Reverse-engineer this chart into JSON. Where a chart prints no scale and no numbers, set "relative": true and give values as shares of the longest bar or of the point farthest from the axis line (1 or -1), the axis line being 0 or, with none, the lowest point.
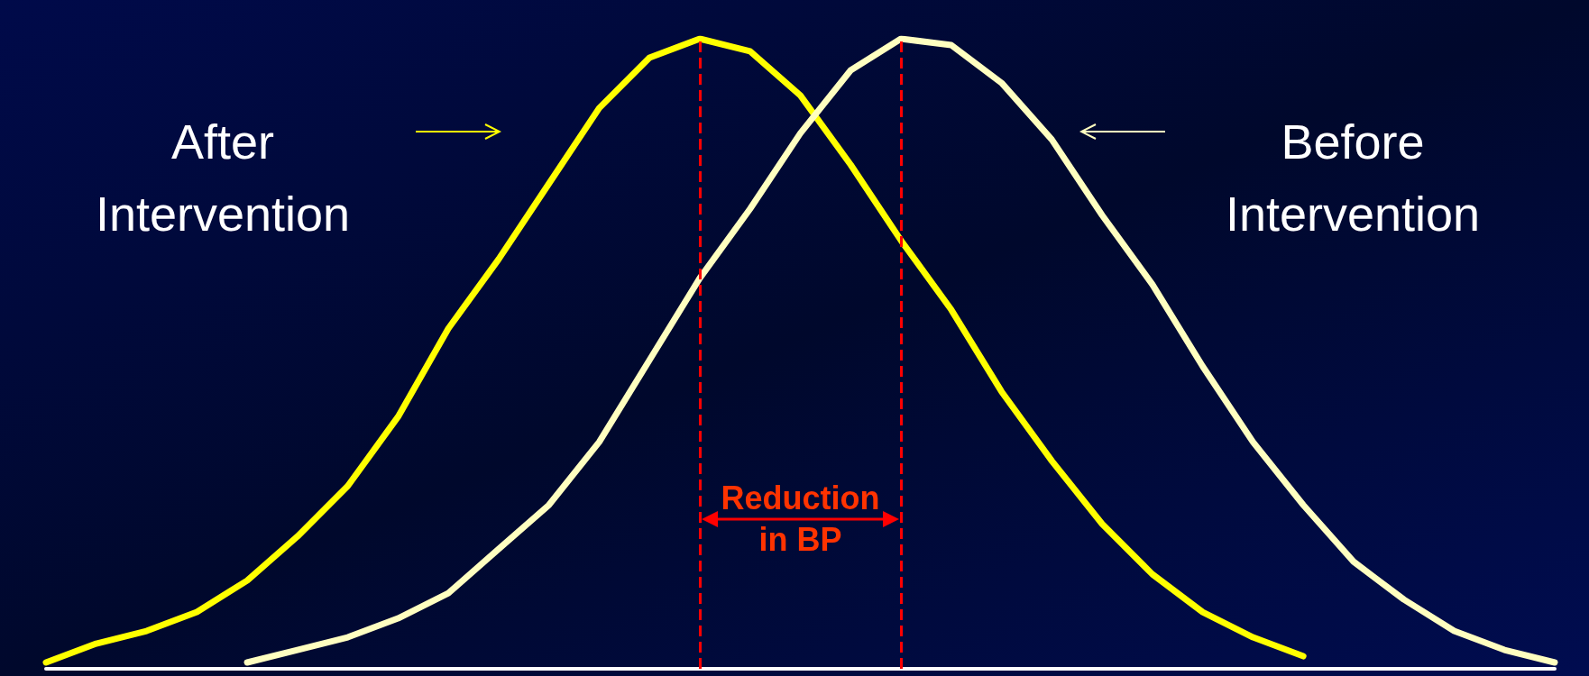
{
  "chart_data": {
    "type": "line",
    "relative": true,
    "grid": false,
    "marker": "none",
    "line_style": "solid",
    "categories": [
      null,
      null,
      null,
      null,
      null,
      null,
      null,
      null,
      null,
      null,
      null,
      null,
      null,
      null,
      null,
      null,
      null,
      null,
      null,
      null,
      null,
      null,
      null,
      null,
      null,
      null,
      null,
      null,
      null,
      null,
      null
    ],
    "series": [
      {
        "color": "#ffff00",
        "values": [
          0.01,
          0.04,
          0.06,
          0.09,
          0.14,
          0.21,
          0.29,
          0.4,
          0.54,
          0.65,
          0.77,
          0.89,
          0.97,
          1,
          0.98,
          0.91,
          0.8,
          0.68,
          0.57,
          0.44,
          0.33,
          0.23,
          0.15,
          0.09,
          0.05,
          0.02,
          null,
          null,
          null,
          null,
          null
        ]
      },
      {
        "color": "#ffffc0",
        "values": [
          null,
          null,
          null,
          null,
          0.01,
          0.03,
          0.05,
          0.08,
          0.12,
          0.19,
          0.26,
          0.36,
          0.49,
          0.62,
          0.73,
          0.85,
          0.95,
          1,
          0.99,
          0.93,
          0.84,
          0.72,
          0.61,
          0.48,
          0.36,
          0.26,
          0.17,
          0.11,
          0.06,
          0.03,
          0.01
        ]
      }
    ],
    "annotations": [
      "After\nIntervention",
      "Before\nIntervention",
      "Reduction\nin BP"
    ]
  }
}
